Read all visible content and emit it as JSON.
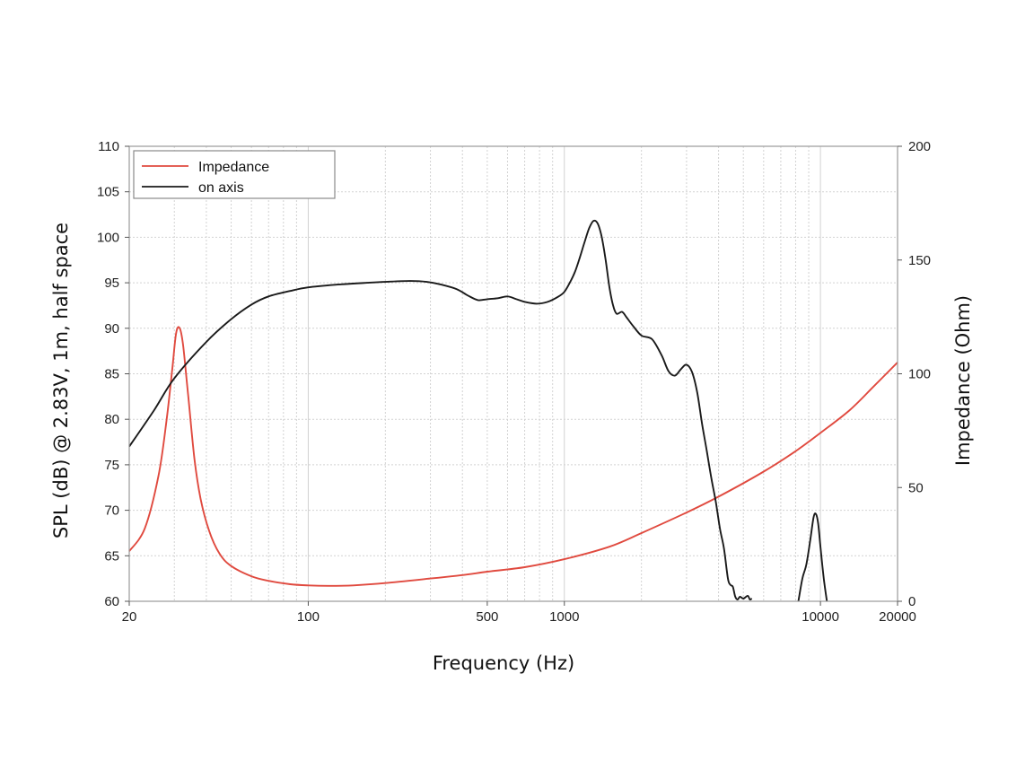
{
  "chart_data": {
    "type": "line",
    "title": "",
    "xlabel": "Frequency (Hz)",
    "ylabel_left": "SPL (dB) @ 2.83V, 1m, half space",
    "ylabel_right": "Impedance (Ohm)",
    "x_scale": "log",
    "xlim": [
      20,
      20000
    ],
    "ylim_left": [
      60,
      110
    ],
    "ylim_right": [
      0,
      200
    ],
    "x_ticks": [
      {
        "value": 20,
        "label": "20"
      },
      {
        "value": 100,
        "label": "100"
      },
      {
        "value": 500,
        "label": "500"
      },
      {
        "value": 1000,
        "label": "1000"
      },
      {
        "value": 10000,
        "label": "10000"
      },
      {
        "value": 20000,
        "label": "20000"
      }
    ],
    "y_left_ticks": [
      {
        "value": 60,
        "label": "60"
      },
      {
        "value": 65,
        "label": "65"
      },
      {
        "value": 70,
        "label": "70"
      },
      {
        "value": 75,
        "label": "75"
      },
      {
        "value": 80,
        "label": "80"
      },
      {
        "value": 85,
        "label": "85"
      },
      {
        "value": 90,
        "label": "90"
      },
      {
        "value": 95,
        "label": "95"
      },
      {
        "value": 100,
        "label": "100"
      },
      {
        "value": 105,
        "label": "105"
      },
      {
        "value": 110,
        "label": "110"
      }
    ],
    "y_right_ticks": [
      {
        "value": 0,
        "label": "0"
      },
      {
        "value": 50,
        "label": "50"
      },
      {
        "value": 100,
        "label": "100"
      },
      {
        "value": 150,
        "label": "150"
      },
      {
        "value": 200,
        "label": "200"
      }
    ],
    "grid": true,
    "legend_position": "top-left",
    "series": [
      {
        "name": "Impedance",
        "axis": "right",
        "color": "#e04a3f",
        "points": [
          [
            20,
            22
          ],
          [
            23,
            32
          ],
          [
            26,
            55
          ],
          [
            28,
            80
          ],
          [
            29.5,
            103
          ],
          [
            30.5,
            118
          ],
          [
            31.5,
            120
          ],
          [
            32.5,
            112
          ],
          [
            34,
            90
          ],
          [
            36,
            62
          ],
          [
            38,
            45
          ],
          [
            41,
            31
          ],
          [
            45,
            21
          ],
          [
            50,
            15.5
          ],
          [
            60,
            11
          ],
          [
            70,
            9
          ],
          [
            85,
            7.5
          ],
          [
            100,
            7
          ],
          [
            120,
            6.8
          ],
          [
            150,
            7
          ],
          [
            200,
            8
          ],
          [
            300,
            10
          ],
          [
            400,
            11.5
          ],
          [
            500,
            13
          ],
          [
            700,
            15
          ],
          [
            1000,
            18.5
          ],
          [
            1500,
            24
          ],
          [
            2000,
            30
          ],
          [
            3000,
            39
          ],
          [
            4000,
            46
          ],
          [
            6000,
            57
          ],
          [
            8000,
            66
          ],
          [
            10000,
            74
          ],
          [
            13000,
            84
          ],
          [
            16000,
            94
          ],
          [
            20000,
            105
          ]
        ]
      },
      {
        "name": "on axis",
        "axis": "left",
        "color": "#1a1a1a",
        "points": [
          [
            20,
            77
          ],
          [
            25,
            81
          ],
          [
            30,
            84.5
          ],
          [
            40,
            88.5
          ],
          [
            50,
            91
          ],
          [
            60,
            92.6
          ],
          [
            70,
            93.5
          ],
          [
            85,
            94.1
          ],
          [
            100,
            94.5
          ],
          [
            130,
            94.8
          ],
          [
            170,
            95.0
          ],
          [
            200,
            95.1
          ],
          [
            250,
            95.2
          ],
          [
            290,
            95.1
          ],
          [
            330,
            94.8
          ],
          [
            380,
            94.3
          ],
          [
            420,
            93.6
          ],
          [
            460,
            93.1
          ],
          [
            500,
            93.2
          ],
          [
            550,
            93.3
          ],
          [
            600,
            93.5
          ],
          [
            650,
            93.2
          ],
          [
            700,
            92.9
          ],
          [
            780,
            92.7
          ],
          [
            860,
            92.9
          ],
          [
            950,
            93.5
          ],
          [
            1000,
            94
          ],
          [
            1050,
            95
          ],
          [
            1100,
            96.2
          ],
          [
            1150,
            97.8
          ],
          [
            1200,
            99.5
          ],
          [
            1250,
            101
          ],
          [
            1300,
            101.8
          ],
          [
            1350,
            101.5
          ],
          [
            1400,
            100
          ],
          [
            1450,
            97.5
          ],
          [
            1500,
            94.5
          ],
          [
            1550,
            92.5
          ],
          [
            1600,
            91.6
          ],
          [
            1680,
            91.8
          ],
          [
            1750,
            91.2
          ],
          [
            1850,
            90.3
          ],
          [
            2000,
            89.2
          ],
          [
            2200,
            88.8
          ],
          [
            2400,
            87
          ],
          [
            2550,
            85.3
          ],
          [
            2700,
            84.8
          ],
          [
            2850,
            85.5
          ],
          [
            3000,
            86
          ],
          [
            3150,
            85.2
          ],
          [
            3300,
            83
          ],
          [
            3450,
            79.5
          ],
          [
            3600,
            76.5
          ],
          [
            3750,
            73.5
          ],
          [
            3900,
            71
          ],
          [
            4050,
            68
          ],
          [
            4200,
            65.8
          ],
          [
            4350,
            62.5
          ],
          [
            4450,
            61.8
          ],
          [
            4550,
            61.6
          ],
          [
            4650,
            60.5
          ],
          [
            4750,
            60.2
          ],
          [
            4850,
            60.5
          ],
          [
            5000,
            60.3
          ],
          [
            5200,
            60.6
          ],
          [
            5300,
            60.2
          ],
          [
            5400,
            60.3
          ]
        ]
      },
      {
        "name": "",
        "axis": "left",
        "color": "#1a1a1a",
        "points": [
          [
            8200,
            60
          ],
          [
            8500,
            62.5
          ],
          [
            8800,
            64
          ],
          [
            9100,
            66.5
          ],
          [
            9400,
            69.2
          ],
          [
            9600,
            69.6
          ],
          [
            9800,
            68.5
          ],
          [
            10000,
            66
          ],
          [
            10300,
            62.5
          ],
          [
            10600,
            60
          ]
        ]
      }
    ]
  }
}
